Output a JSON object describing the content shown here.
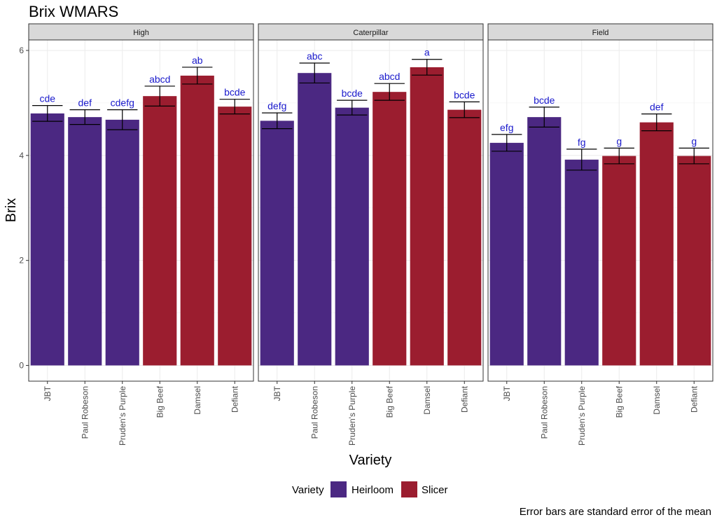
{
  "chart_data": {
    "type": "bar",
    "title": "Brix WMARS",
    "xlabel": "Variety",
    "ylabel": "Brix",
    "ylim": [
      -0.3,
      6.2
    ],
    "yticks": [
      0,
      2,
      4,
      6
    ],
    "grid": true,
    "categories": [
      "JBT",
      "Paul Robeson",
      "Pruden's Purple",
      "Big Beef",
      "Damsel",
      "Defiant"
    ],
    "category_groups": [
      "Heirloom",
      "Heirloom",
      "Heirloom",
      "Slicer",
      "Slicer",
      "Slicer"
    ],
    "panels": [
      {
        "name": "High",
        "values": [
          4.8,
          4.73,
          4.68,
          5.13,
          5.52,
          4.93
        ],
        "se": [
          0.15,
          0.14,
          0.19,
          0.19,
          0.16,
          0.14
        ],
        "letters": [
          "cde",
          "def",
          "cdefg",
          "abcd",
          "ab",
          "bcde"
        ]
      },
      {
        "name": "Caterpillar",
        "values": [
          4.66,
          5.57,
          4.91,
          5.21,
          5.68,
          4.87
        ],
        "se": [
          0.15,
          0.19,
          0.14,
          0.16,
          0.15,
          0.15
        ],
        "letters": [
          "defg",
          "abc",
          "bcde",
          "abcd",
          "a",
          "bcde"
        ]
      },
      {
        "name": "Field",
        "values": [
          4.24,
          4.73,
          3.92,
          3.99,
          4.63,
          3.99
        ],
        "se": [
          0.16,
          0.19,
          0.2,
          0.15,
          0.16,
          0.15
        ],
        "letters": [
          "efg",
          "bcde",
          "fg",
          "g",
          "def",
          "g"
        ]
      }
    ],
    "legend": {
      "title": "Variety",
      "position": "bottom",
      "items": [
        {
          "label": "Heirloom",
          "color": "#4b2882"
        },
        {
          "label": "Slicer",
          "color": "#9b1d2f"
        }
      ]
    },
    "label_color": "#1a1acc",
    "caption": "Error bars are standard error of the mean"
  }
}
